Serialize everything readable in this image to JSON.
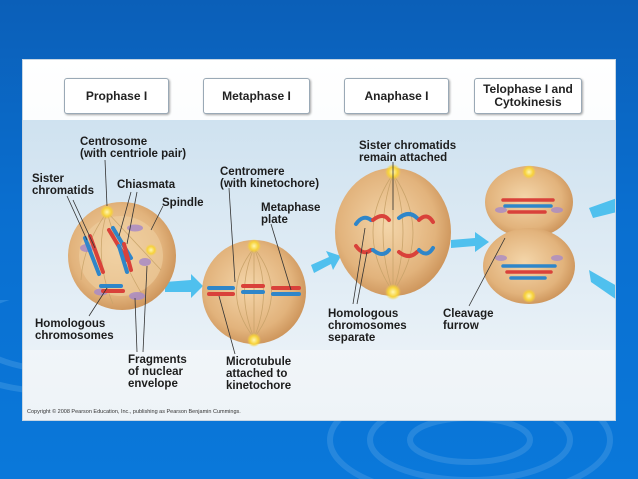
{
  "phases": [
    {
      "label": "Prophase I"
    },
    {
      "label": "Metaphase I"
    },
    {
      "label": "Anaphase I"
    },
    {
      "label": "Telophase I and\nCytokinesis"
    }
  ],
  "labels": {
    "centrosome": "Centrosome\n(with centriole pair)",
    "sister_chromatids": "Sister\nchromatids",
    "chiasmata": "Chiasmata",
    "spindle": "Spindle",
    "homologous_chromosomes": "Homologous\nchromosomes",
    "fragments": "Fragments\nof nuclear\nenvelope",
    "centromere": "Centromere\n(with kinetochore)",
    "metaphase_plate": "Metaphase\nplate",
    "microtubule": "Microtubule\nattached to\nkinetochore",
    "sister_chromatids_remain": "Sister chromatids\nremain attached",
    "homologous_separate": "Homologous\nchromosomes\nseparate",
    "cleavage_furrow": "Cleavage\nfurrow"
  },
  "copyright": "Copyright © 2008 Pearson Education, Inc., publishing as Pearson Benjamin Cummings.",
  "colors": {
    "slide_background": "#0a6fd0",
    "cell_fill": "#dfb07a",
    "cell_center": "#f2d2a4",
    "chromosome_red": "#d9413a",
    "chromosome_blue": "#2f86c9",
    "arrow": "#4fc0ee",
    "centrosome_glow": "#f7d23a",
    "envelope_purple": "#a98bc6"
  }
}
